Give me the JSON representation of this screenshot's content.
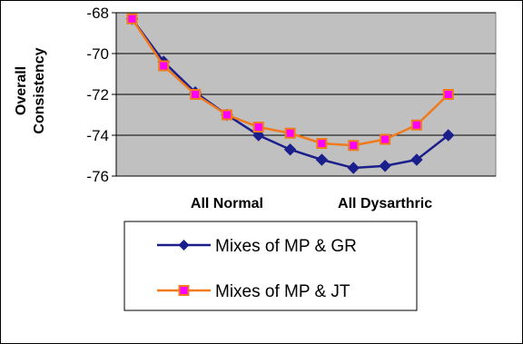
{
  "chart_data": {
    "type": "line",
    "title": "",
    "ylabel": "Overall Consistency",
    "xlabel": "",
    "ylim": [
      -76,
      -68
    ],
    "yticks": [
      -68,
      -70,
      -72,
      -74,
      -76
    ],
    "grid": true,
    "category_labels": [
      {
        "text": "All Normal",
        "at_index": 3
      },
      {
        "text": "All Dysarthric",
        "at_index": 8
      }
    ],
    "x": [
      0,
      1,
      2,
      3,
      4,
      5,
      6,
      7,
      8,
      9,
      10,
      11
    ],
    "series": [
      {
        "name": "Mixes of MP & GR",
        "color": "#1a1f8c",
        "marker": "diamond",
        "values": [
          -68.3,
          -70.4,
          -71.9,
          -73.0,
          -74.0,
          -74.7,
          -75.2,
          -75.6,
          -75.5,
          -75.2,
          -74.0,
          null
        ]
      },
      {
        "name": "Mixes of MP & JT",
        "color": "#f07a1c",
        "marker": "square",
        "marker_fill": "#ff00ff",
        "values": [
          -68.3,
          -70.6,
          -72.0,
          -73.0,
          -73.6,
          -73.9,
          -74.4,
          -74.5,
          -74.2,
          -73.5,
          -72.0,
          null
        ]
      }
    ],
    "legend_position": "bottom"
  }
}
